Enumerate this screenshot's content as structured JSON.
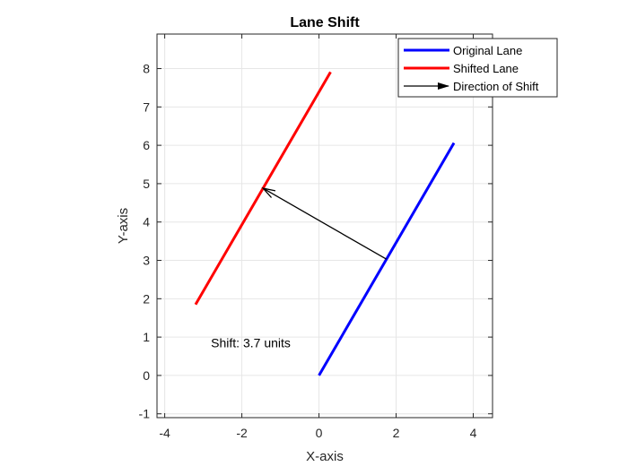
{
  "chart_data": {
    "type": "line",
    "title": "Lane Shift",
    "xlabel": "X-axis",
    "ylabel": "Y-axis",
    "xlim": [
      -4.2,
      4.5
    ],
    "ylim": [
      -1.1,
      8.9
    ],
    "xticks": [
      -4,
      -2,
      0,
      2,
      4
    ],
    "yticks": [
      -1,
      0,
      1,
      2,
      3,
      4,
      5,
      6,
      7,
      8
    ],
    "grid": true,
    "legend_position": "top-right",
    "series": [
      {
        "name": "Original Lane",
        "color": "#0000ff",
        "x": [
          0,
          3.5
        ],
        "y": [
          0,
          6.06
        ]
      },
      {
        "name": "Shifted Lane",
        "color": "#ff0000",
        "x": [
          -3.2,
          0.3
        ],
        "y": [
          1.85,
          7.91
        ]
      }
    ],
    "arrow": {
      "name": "Direction of Shift",
      "color": "#000000",
      "from": [
        1.75,
        3.03
      ],
      "to": [
        -1.45,
        4.88
      ]
    },
    "annotation": {
      "text": "Shift: 3.7 units",
      "x": -2.8,
      "y": 0.85
    }
  }
}
